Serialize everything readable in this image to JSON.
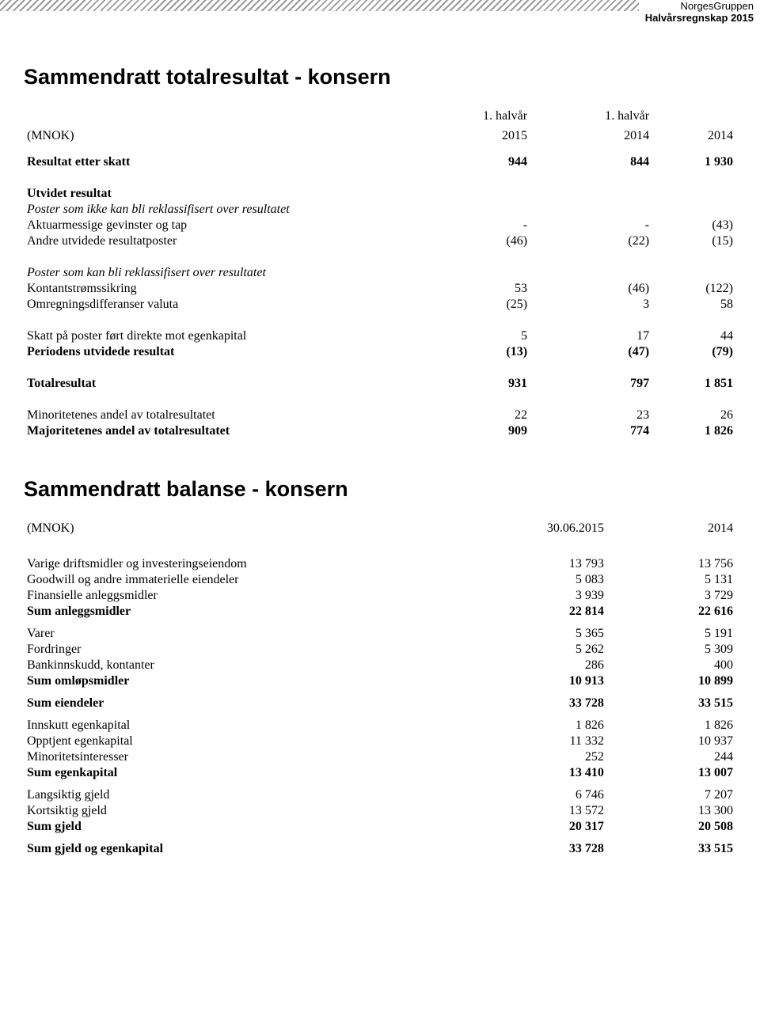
{
  "header": {
    "company": "NorgesGruppen",
    "subtitle": "Halvårsregnskap 2015"
  },
  "table1": {
    "title": "Sammendratt totalresultat - konsern",
    "unit_label": "(MNOK)",
    "col_headers": {
      "c1_top": "1. halvår",
      "c1_bot": "2015",
      "c2_top": "1. halvår",
      "c2_bot": "2014",
      "c3_top": "",
      "c3_bot": "2014"
    },
    "rows": [
      {
        "label": "Resultat etter skatt",
        "v": [
          "944",
          "844",
          "1 930"
        ],
        "bold": true,
        "gap_after": "lg"
      },
      {
        "label": "Utvidet resultat",
        "v": [
          "",
          "",
          ""
        ],
        "bold": true
      },
      {
        "label": "Poster som ikke kan bli reklassifisert over resultatet",
        "v": [
          "",
          "",
          ""
        ],
        "italic": true
      },
      {
        "label": "Aktuarmessige gevinster og tap",
        "v": [
          "-",
          "-",
          "(43)"
        ]
      },
      {
        "label": "Andre utvidede resultatposter",
        "v": [
          "(46)",
          "(22)",
          "(15)"
        ],
        "gap_after": "lg"
      },
      {
        "label": "Poster som kan bli reklassifisert over resultatet",
        "v": [
          "",
          "",
          ""
        ],
        "italic": true
      },
      {
        "label": "Kontantstrømssikring",
        "v": [
          "53",
          "(46)",
          "(122)"
        ]
      },
      {
        "label": "Omregningsdifferanser valuta",
        "v": [
          "(25)",
          "3",
          "58"
        ],
        "gap_after": "lg"
      },
      {
        "label": "Skatt på poster ført direkte mot egenkapital",
        "v": [
          "5",
          "17",
          "44"
        ]
      },
      {
        "label": "Periodens utvidede resultat",
        "v": [
          "(13)",
          "(47)",
          "(79)"
        ],
        "bold": true,
        "gap_after": "lg"
      },
      {
        "label": "Totalresultat",
        "v": [
          "931",
          "797",
          "1 851"
        ],
        "bold": true,
        "gap_after": "lg"
      },
      {
        "label": "Minoritetenes andel av totalresultatet",
        "v": [
          "22",
          "23",
          "26"
        ]
      },
      {
        "label": "Majoritetenes andel av totalresultatet",
        "v": [
          "909",
          "774",
          "1 826"
        ],
        "bold": true
      }
    ]
  },
  "table2": {
    "title": "Sammendratt balanse - konsern",
    "unit_label": "(MNOK)",
    "col_headers": {
      "c1": "30.06.2015",
      "c2": "2014"
    },
    "rows": [
      {
        "gap_before": "lg",
        "label": "Varige driftsmidler og investeringseiendom",
        "v": [
          "13 793",
          "13 756"
        ]
      },
      {
        "label": "Goodwill og andre immaterielle eiendeler",
        "v": [
          "5 083",
          "5 131"
        ]
      },
      {
        "label": "Finansielle anleggsmidler",
        "v": [
          "3 939",
          "3 729"
        ]
      },
      {
        "label": "Sum anleggsmidler",
        "v": [
          "22 814",
          "22 616"
        ],
        "bold": true,
        "gap_after": "sm"
      },
      {
        "label": "Varer",
        "v": [
          "5 365",
          "5 191"
        ]
      },
      {
        "label": "Fordringer",
        "v": [
          "5 262",
          "5 309"
        ]
      },
      {
        "label": "Bankinnskudd, kontanter",
        "v": [
          "286",
          "400"
        ]
      },
      {
        "label": "Sum omløpsmidler",
        "v": [
          "10 913",
          "10 899"
        ],
        "bold": true,
        "gap_after": "sm"
      },
      {
        "label": "Sum eiendeler",
        "v": [
          "33 728",
          "33 515"
        ],
        "bold": true,
        "gap_after": "sm"
      },
      {
        "label": "Innskutt egenkapital",
        "v": [
          "1 826",
          "1 826"
        ]
      },
      {
        "label": "Opptjent egenkapital",
        "v": [
          "11 332",
          "10 937"
        ]
      },
      {
        "label": "Minoritetsinteresser",
        "v": [
          "252",
          "244"
        ]
      },
      {
        "label": "Sum egenkapital",
        "v": [
          "13 410",
          "13 007"
        ],
        "bold": true,
        "gap_after": "sm"
      },
      {
        "label": "Langsiktig gjeld",
        "v": [
          "6 746",
          "7 207"
        ]
      },
      {
        "label": "Kortsiktig gjeld",
        "v": [
          "13 572",
          "13 300"
        ]
      },
      {
        "label": "Sum gjeld",
        "v": [
          "20 317",
          "20 508"
        ],
        "bold": true,
        "gap_after": "sm"
      },
      {
        "label": "Sum gjeld og egenkapital",
        "v": [
          "33 728",
          "33 515"
        ],
        "bold": true
      }
    ]
  }
}
